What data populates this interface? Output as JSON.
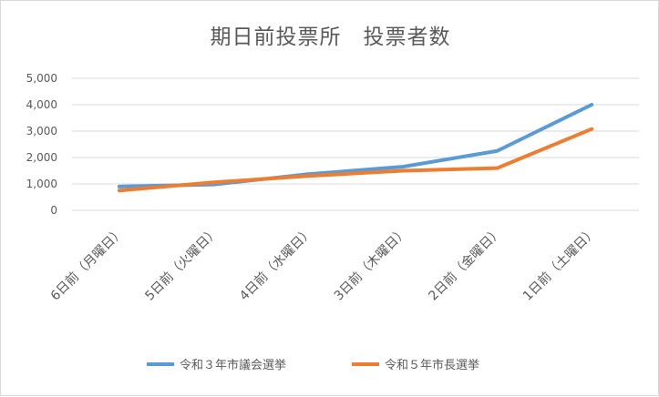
{
  "chart_data": {
    "type": "line",
    "title": "期日前投票所　投票者数",
    "categories": [
      "6日前（月曜日）",
      "5日前（火曜日）",
      "4日前（水曜日）",
      "3日前（木曜日）",
      "2日前（金曜日）",
      "1日前（土曜日）"
    ],
    "series": [
      {
        "name": "令和３年市議会選挙",
        "color": "#5b9bd5",
        "values": [
          900,
          980,
          1370,
          1650,
          2250,
          4000
        ]
      },
      {
        "name": "令和５年市長選挙",
        "color": "#ed7d31",
        "values": [
          750,
          1060,
          1300,
          1500,
          1600,
          3080
        ]
      }
    ],
    "ylim": [
      0,
      5000
    ],
    "yticks": [
      0,
      1000,
      2000,
      3000,
      4000,
      5000
    ],
    "ytick_labels": [
      "0",
      "1,000",
      "2,000",
      "3,000",
      "4,000",
      "5,000"
    ],
    "grid": true,
    "legend": "bottom"
  }
}
